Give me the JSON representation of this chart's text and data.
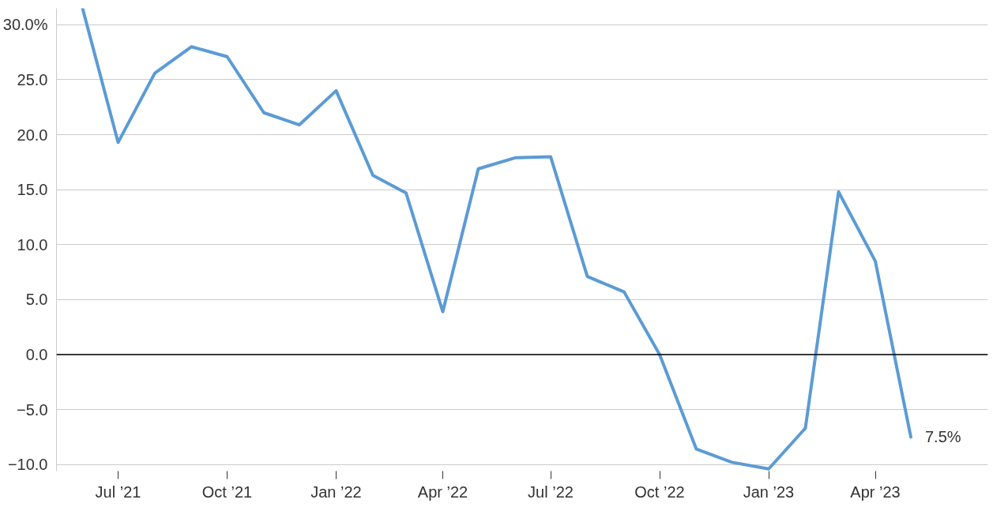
{
  "chart_data": {
    "type": "line",
    "x": [
      "2021-06",
      "2021-07",
      "2021-08",
      "2021-09",
      "2021-10",
      "2021-11",
      "2021-12",
      "2022-01",
      "2022-02",
      "2022-03",
      "2022-04",
      "2022-05",
      "2022-06",
      "2022-07",
      "2022-08",
      "2022-09",
      "2022-10",
      "2022-11",
      "2022-12",
      "2023-01",
      "2023-02",
      "2023-03",
      "2023-04",
      "2023-05"
    ],
    "series": [
      {
        "color": "#5b9bd5",
        "values": [
          31.5,
          19.3,
          25.6,
          28.0,
          27.1,
          22.0,
          20.9,
          24.0,
          16.3,
          14.7,
          3.9,
          16.9,
          17.9,
          18.0,
          7.1,
          5.7,
          0.0,
          -8.6,
          -9.8,
          -10.4,
          -6.7,
          14.8,
          8.5,
          -7.5
        ]
      }
    ],
    "xlim": [
      "2021-05-10",
      "2023-07-05"
    ],
    "xticks": [
      {
        "value": "2021-07",
        "label": "Jul ’21"
      },
      {
        "value": "2021-10",
        "label": "Oct ’21"
      },
      {
        "value": "2022-01",
        "label": "Jan ’22"
      },
      {
        "value": "2022-04",
        "label": "Apr ’22"
      },
      {
        "value": "2022-07",
        "label": "Jul ’22"
      },
      {
        "value": "2022-10",
        "label": "Oct ’22"
      },
      {
        "value": "2023-01",
        "label": "Jan ’23"
      },
      {
        "value": "2023-04",
        "label": "Apr ’23"
      }
    ],
    "ylim": [
      -10.6,
      31.5
    ],
    "yticks": [
      {
        "value": -10,
        "label": "−10.0"
      },
      {
        "value": -5,
        "label": "−5.0"
      },
      {
        "value": 0,
        "label": "0.0"
      },
      {
        "value": 5,
        "label": "5.0"
      },
      {
        "value": 10,
        "label": "10.0"
      },
      {
        "value": 15,
        "label": "15.0"
      },
      {
        "value": 20,
        "label": "20.0"
      },
      {
        "value": 25,
        "label": "25.0"
      },
      {
        "value": 30,
        "label": "30.0%"
      }
    ],
    "grid": "y",
    "ref_lines": [
      {
        "axis": "y",
        "value": 0,
        "color": "#000000"
      }
    ],
    "annotations": [
      {
        "text": "7.5%",
        "x": "2023-05",
        "y": -7.5
      }
    ]
  }
}
